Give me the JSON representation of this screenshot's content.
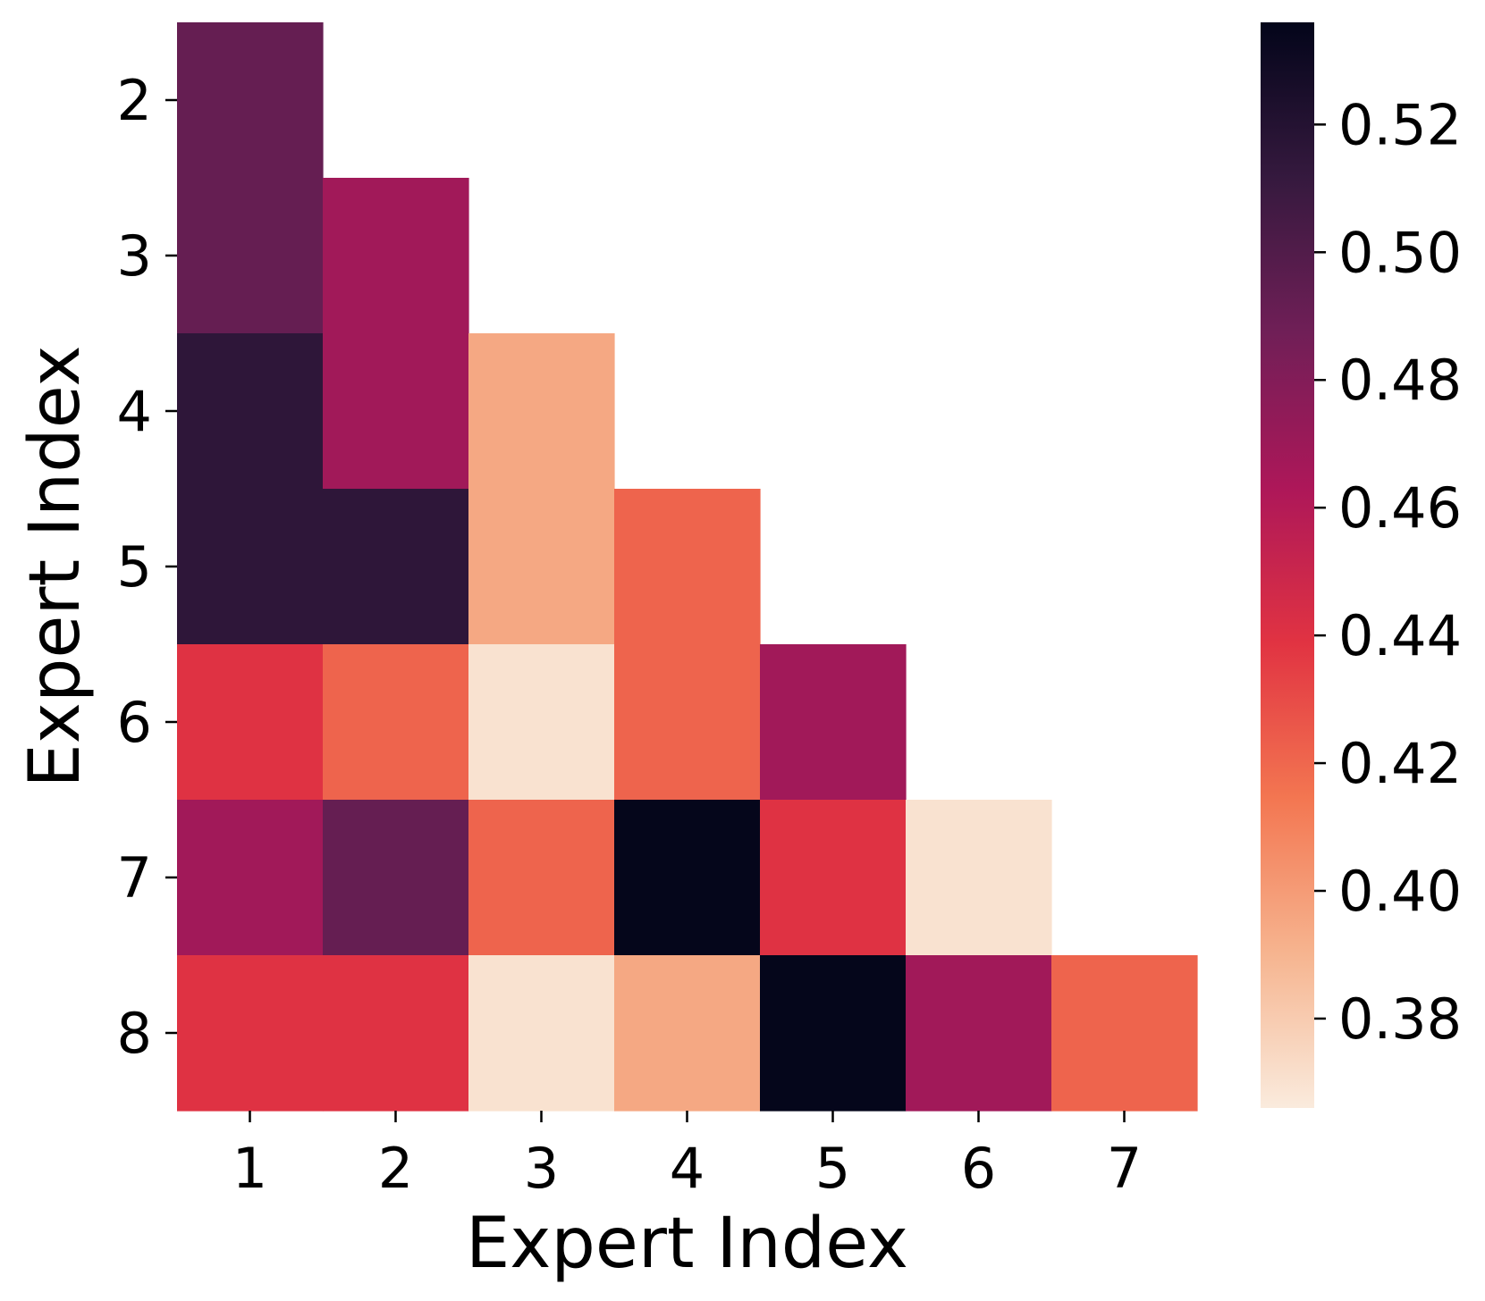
{
  "chart_data": {
    "type": "heatmap",
    "title": "",
    "xlabel": "Expert Index",
    "ylabel": "Expert Index",
    "x_categories": [
      "1",
      "2",
      "3",
      "4",
      "5",
      "6",
      "7"
    ],
    "y_categories": [
      "2",
      "3",
      "4",
      "5",
      "6",
      "7",
      "8"
    ],
    "values": [
      [
        0.492,
        null,
        null,
        null,
        null,
        null,
        null
      ],
      [
        0.492,
        0.468,
        null,
        null,
        null,
        null,
        null
      ],
      [
        0.515,
        0.468,
        0.395,
        null,
        null,
        null,
        null
      ],
      [
        0.515,
        0.515,
        0.395,
        0.421,
        null,
        null,
        null
      ],
      [
        0.44,
        0.421,
        0.37,
        0.421,
        0.468,
        null,
        null
      ],
      [
        0.468,
        0.492,
        0.421,
        0.535,
        0.44,
        0.37,
        null
      ],
      [
        0.44,
        0.44,
        0.37,
        0.395,
        0.535,
        0.468,
        0.421
      ]
    ],
    "colorbar": {
      "ticks": [
        "0.38",
        "0.40",
        "0.42",
        "0.44",
        "0.46",
        "0.48",
        "0.50",
        "0.52"
      ],
      "tick_values": [
        0.38,
        0.4,
        0.42,
        0.44,
        0.46,
        0.48,
        0.5,
        0.52
      ],
      "range": [
        0.366,
        0.536
      ],
      "colormap": "rocket_r"
    },
    "colormap_stops": [
      "#faebdd",
      "#f6b48f",
      "#f37651",
      "#e13342",
      "#ad1759",
      "#701f57",
      "#35193e",
      "#03051a"
    ]
  }
}
